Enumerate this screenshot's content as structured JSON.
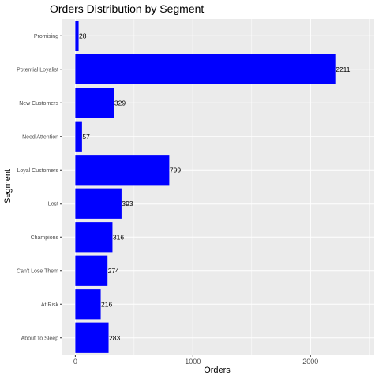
{
  "chart_data": {
    "type": "bar",
    "orientation": "horizontal",
    "title": "Orders  Distribution by Segment",
    "xlabel": "Orders",
    "ylabel": "Segment",
    "categories": [
      "Promising",
      "Potential Loyalist",
      "New Customers",
      "Need Attention",
      "Loyal Customers",
      "Lost",
      "Champions",
      "Can't Lose Them",
      "At Risk",
      "About To Sleep"
    ],
    "values": [
      28,
      2211,
      329,
      57,
      799,
      393,
      316,
      274,
      216,
      283
    ],
    "x_ticks": [
      0,
      1000,
      2000
    ],
    "xlim": [
      -110,
      2542
    ],
    "grid": true,
    "colors": {
      "bar": "#0000ff",
      "panel": "#ebebeb",
      "grid": "#ffffff"
    }
  }
}
